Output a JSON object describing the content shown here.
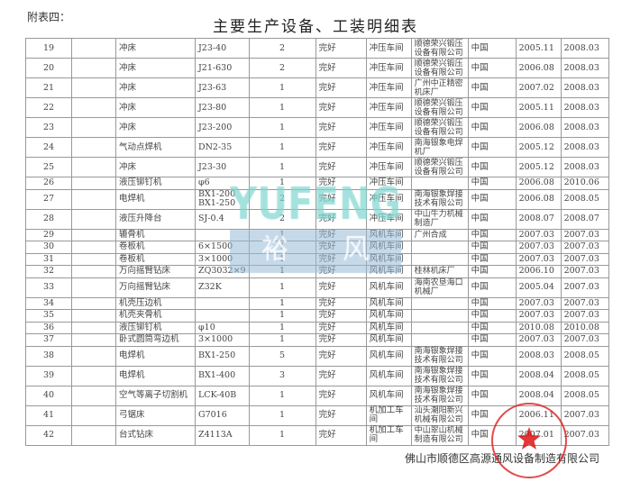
{
  "label": "附表四：",
  "title": "主要生产设备、工装明细表",
  "rows": [
    [
      "19",
      "",
      "冲床",
      "J23-40",
      "2",
      "完好",
      "冲压车间",
      "顺德荣兴锻压设备有限公司",
      "中国",
      "2005.11",
      "2008.03"
    ],
    [
      "20",
      "",
      "冲床",
      "J21-630",
      "2",
      "完好",
      "冲压车间",
      "顺德荣兴锻压设备有限公司",
      "中国",
      "2006.08",
      "2008.03"
    ],
    [
      "21",
      "",
      "冲床",
      "J23-63",
      "1",
      "完好",
      "冲压车间",
      "广州中正精密机床厂",
      "中国",
      "2007.02",
      "2008.03"
    ],
    [
      "22",
      "",
      "冲床",
      "J23-80",
      "1",
      "完好",
      "冲压车间",
      "顺德荣兴锻压设备有限公司",
      "中国",
      "2005.11",
      "2008.03"
    ],
    [
      "23",
      "",
      "冲床",
      "J23-200",
      "1",
      "完好",
      "冲压车间",
      "顺德荣兴锻压设备有限公司",
      "中国",
      "2006.08",
      "2008.03"
    ],
    [
      "24",
      "",
      "气动点焊机",
      "DN2-35",
      "1",
      "完好",
      "冲压车间",
      "南海银象电焊机厂",
      "中国",
      "2005.12",
      "2008.03"
    ],
    [
      "25",
      "",
      "冲床",
      "J23-30",
      "1",
      "完好",
      "冲压车间",
      "顺德荣兴锻压设备有限公司",
      "中国",
      "2005.12",
      "2008.03"
    ],
    [
      "26",
      "",
      "液压铆钉机",
      "φ6",
      "1",
      "完好",
      "冲压车间",
      "",
      "中国",
      "2006.08",
      "2010.06"
    ],
    [
      "27",
      "",
      "电焊机",
      "BX1-200 BX1-250",
      "2",
      "完好",
      "冲压车间",
      "南海银象焊接技术有限公司",
      "中国",
      "2006.08",
      "2008.05"
    ],
    [
      "28",
      "",
      "液压升降台",
      "SJ-0.4",
      "2",
      "完好",
      "冲压车间",
      "中山牛力机械制造厂",
      "中国",
      "2008.07",
      "2008.07"
    ],
    [
      "29",
      "",
      "辘骨机",
      "",
      "1",
      "完好",
      "风机车间",
      "广州合成",
      "中国",
      "2007.03",
      "2007.03"
    ],
    [
      "30",
      "",
      "卷板机",
      "6×1500",
      "1",
      "完好",
      "风机车间",
      "",
      "中国",
      "2007.03",
      "2007.03"
    ],
    [
      "31",
      "",
      "卷板机",
      "3×1000",
      "1",
      "完好",
      "风机车间",
      "",
      "中国",
      "2007.03",
      "2007.03"
    ],
    [
      "32",
      "",
      "万向摇臂钻床",
      "ZQ3032×9",
      "1",
      "完好",
      "风机车间",
      "桂林机床厂",
      "中国",
      "2006.10",
      "2007.03"
    ],
    [
      "33",
      "",
      "万向摇臂钻床",
      "Z32K",
      "1",
      "完好",
      "风机车间",
      "海南农垦海口机械厂",
      "中国",
      "2005.04",
      "2007.03"
    ],
    [
      "34",
      "",
      "机壳压边机",
      "",
      "1",
      "完好",
      "风机车间",
      "",
      "中国",
      "2007.03",
      "2007.03"
    ],
    [
      "35",
      "",
      "机壳夹骨机",
      "",
      "1",
      "完好",
      "风机车间",
      "",
      "中国",
      "2007.03",
      "2007.03"
    ],
    [
      "36",
      "",
      "液压铆钉机",
      "φ10",
      "1",
      "完好",
      "风机车间",
      "",
      "中国",
      "2010.08",
      "2010.08"
    ],
    [
      "37",
      "",
      "卧式圆筒弯边机",
      "3×1000",
      "1",
      "完好",
      "风机车间",
      "",
      "中国",
      "2007.03",
      "2007.03"
    ],
    [
      "38",
      "",
      "电焊机",
      "BX1-250",
      "5",
      "完好",
      "风机车间",
      "南海银象焊接技术有限公司",
      "中国",
      "2008.03",
      "2008.05"
    ],
    [
      "39",
      "",
      "电焊机",
      "BX1-400",
      "3",
      "完好",
      "风机车间",
      "南海银象焊接技术有限公司",
      "中国",
      "2008.04",
      "2008.05"
    ],
    [
      "40",
      "",
      "空气等离子切割机",
      "LCK-40B",
      "1",
      "完好",
      "风机车间",
      "南海银象焊接技术有限公司",
      "中国",
      "2008.04",
      "2008.05"
    ],
    [
      "41",
      "",
      "弓锯床",
      "G7016",
      "1",
      "完好",
      "机加工车间",
      "汕头潮阳新兴机械有限公司",
      "中国",
      "2006.11",
      "2007.03"
    ],
    [
      "42",
      "",
      "台式钻床",
      "Z4113A",
      "1",
      "完好",
      "机加工车间",
      "中山翠山机械制造有限公司",
      "中国",
      "2007.01",
      "2007.03"
    ]
  ],
  "tall": [
    1,
    1,
    1,
    1,
    1,
    1,
    1,
    0,
    1,
    1,
    0,
    0,
    0,
    0,
    1,
    0,
    0,
    0,
    0,
    1,
    1,
    1,
    1,
    1
  ],
  "footer": "佛山市顺德区高源通风设备制造有限公司",
  "watermark": {
    "latin": "YUFENG",
    "cjk": "裕风",
    "color": "#7fd6d0"
  },
  "stamp": {
    "text": "佛山市顺德区高源通风设备制造有限公司",
    "color": "#dc1e1e"
  }
}
